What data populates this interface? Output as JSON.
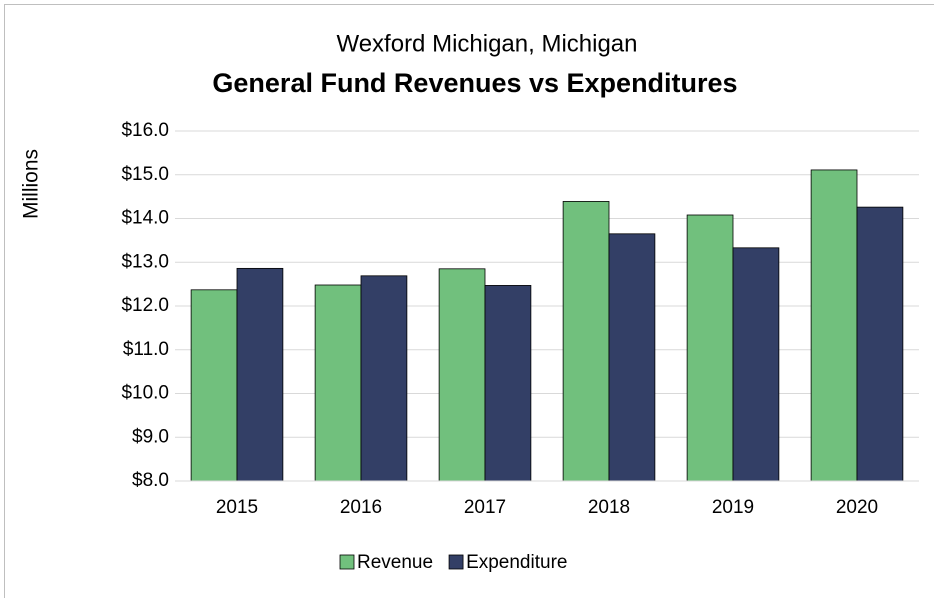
{
  "chart_data": {
    "type": "bar",
    "title": "General Fund Revenues vs Expenditures",
    "subtitle": "Wexford Michigan, Michigan",
    "y_label": "Millions",
    "categories": [
      "2015",
      "2016",
      "2017",
      "2018",
      "2019",
      "2020"
    ],
    "series": [
      {
        "name": "Revenue",
        "color": "#71c07d",
        "values": [
          12.37,
          12.48,
          12.85,
          14.39,
          14.08,
          15.11
        ]
      },
      {
        "name": "Expenditure",
        "color": "#333f66",
        "values": [
          12.86,
          12.69,
          12.47,
          13.65,
          13.33,
          14.26
        ]
      }
    ],
    "ylim": [
      8,
      16
    ],
    "yticks": [
      {
        "value": 8,
        "label": "$8.0"
      },
      {
        "value": 9,
        "label": "$9.0"
      },
      {
        "value": 10,
        "label": "$10.0"
      },
      {
        "value": 11,
        "label": "$11.0"
      },
      {
        "value": 12,
        "label": "$12.0"
      },
      {
        "value": 13,
        "label": "$13.0"
      },
      {
        "value": 14,
        "label": "$14.0"
      },
      {
        "value": 15,
        "label": "$15.0"
      },
      {
        "value": 16,
        "label": "$16.0"
      }
    ],
    "grid": true,
    "legend": "bottom"
  }
}
